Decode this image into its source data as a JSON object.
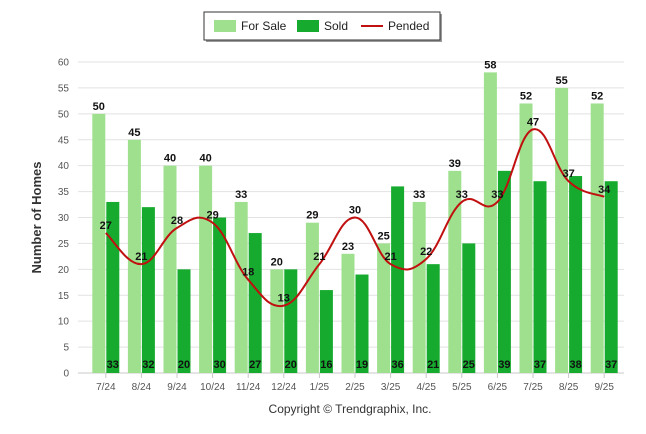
{
  "chart_data": {
    "type": "bar",
    "categories": [
      "7/24",
      "8/24",
      "9/24",
      "10/24",
      "11/24",
      "12/24",
      "1/25",
      "2/25",
      "3/25",
      "4/25",
      "5/25",
      "6/25",
      "7/25",
      "8/25",
      "9/25"
    ],
    "series": [
      {
        "name": "For Sale",
        "kind": "bar",
        "color": "#9fe08f",
        "values": [
          50,
          45,
          40,
          40,
          33,
          20,
          29,
          23,
          25,
          33,
          39,
          58,
          52,
          55,
          52
        ]
      },
      {
        "name": "Sold",
        "kind": "bar",
        "color": "#16ab2e",
        "values": [
          33,
          32,
          20,
          30,
          27,
          20,
          16,
          19,
          36,
          21,
          25,
          39,
          37,
          38,
          37
        ]
      },
      {
        "name": "Pended",
        "kind": "line",
        "color": "#c01010",
        "values": [
          27,
          21,
          28,
          29,
          18,
          13,
          21,
          30,
          21,
          22,
          33,
          33,
          47,
          37,
          34
        ]
      }
    ],
    "ylabel": "Number of Homes",
    "xlabel": "",
    "ylim": [
      0,
      60
    ],
    "yticks": [
      0,
      5,
      10,
      15,
      20,
      25,
      30,
      35,
      40,
      45,
      50,
      55,
      60
    ],
    "grid": true,
    "legend_position": "top-center",
    "credit": "Copyright © Trendgraphix, Inc."
  }
}
